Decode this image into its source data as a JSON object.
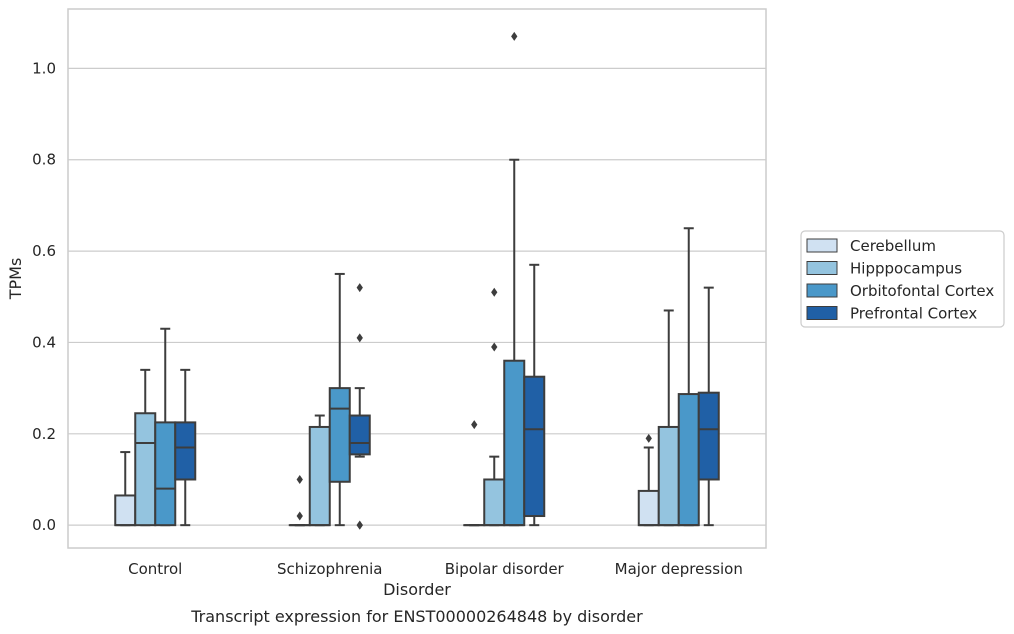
{
  "chart_data": {
    "type": "box",
    "xlabel": "Disorder",
    "ylabel": "TPMs",
    "caption": "Transcript expression for ENST00000264848 by disorder",
    "categories": [
      "Control",
      "Schizophrenia",
      "Bipolar disorder",
      "Major depression"
    ],
    "ylim": [
      -0.05,
      1.13
    ],
    "yticks": [
      0.0,
      0.2,
      0.4,
      0.6,
      0.8,
      1.0
    ],
    "ytick_labels": [
      "0.0",
      "0.2",
      "0.4",
      "0.6",
      "0.8",
      "1.0"
    ],
    "grid": true,
    "legend_position": "right",
    "series": [
      {
        "name": "Cerebellum",
        "color": "#d0e1f2",
        "boxes": [
          {
            "q1": 0.0,
            "median": 0.0,
            "q3": 0.065,
            "whisker_low": 0.0,
            "whisker_high": 0.16,
            "outliers": []
          },
          {
            "q1": 0.0,
            "median": 0.0,
            "q3": 0.0,
            "whisker_low": 0.0,
            "whisker_high": 0.0,
            "outliers": [
              0.1,
              0.02
            ]
          },
          {
            "q1": 0.0,
            "median": 0.0,
            "q3": 0.0,
            "whisker_low": 0.0,
            "whisker_high": 0.0,
            "outliers": [
              0.22
            ]
          },
          {
            "q1": 0.0,
            "median": 0.0,
            "q3": 0.075,
            "whisker_low": 0.0,
            "whisker_high": 0.17,
            "outliers": [
              0.19
            ]
          }
        ]
      },
      {
        "name": "Hipppocampus",
        "color": "#94c4df",
        "boxes": [
          {
            "q1": 0.0,
            "median": 0.18,
            "q3": 0.245,
            "whisker_low": 0.0,
            "whisker_high": 0.34,
            "outliers": []
          },
          {
            "q1": 0.0,
            "median": 0.0,
            "q3": 0.215,
            "whisker_low": 0.0,
            "whisker_high": 0.24,
            "outliers": []
          },
          {
            "q1": 0.0,
            "median": 0.0,
            "q3": 0.1,
            "whisker_low": 0.0,
            "whisker_high": 0.15,
            "outliers": [
              0.39,
              0.51
            ]
          },
          {
            "q1": 0.0,
            "median": 0.0,
            "q3": 0.215,
            "whisker_low": 0.0,
            "whisker_high": 0.47,
            "outliers": []
          }
        ]
      },
      {
        "name": "Orbitofontal Cortex",
        "color": "#4a98c9",
        "boxes": [
          {
            "q1": 0.0,
            "median": 0.08,
            "q3": 0.225,
            "whisker_low": 0.0,
            "whisker_high": 0.43,
            "outliers": []
          },
          {
            "q1": 0.095,
            "median": 0.255,
            "q3": 0.3,
            "whisker_low": 0.0,
            "whisker_high": 0.55,
            "outliers": []
          },
          {
            "q1": 0.0,
            "median": 0.0,
            "q3": 0.36,
            "whisker_low": 0.0,
            "whisker_high": 0.8,
            "outliers": [
              1.07
            ]
          },
          {
            "q1": 0.0,
            "median": 0.0,
            "q3": 0.287,
            "whisker_low": 0.0,
            "whisker_high": 0.65,
            "outliers": []
          }
        ]
      },
      {
        "name": "Prefrontal Cortex",
        "color": "#2060a6",
        "boxes": [
          {
            "q1": 0.1,
            "median": 0.17,
            "q3": 0.225,
            "whisker_low": 0.0,
            "whisker_high": 0.34,
            "outliers": []
          },
          {
            "q1": 0.155,
            "median": 0.18,
            "q3": 0.24,
            "whisker_low": 0.15,
            "whisker_high": 0.3,
            "outliers": [
              0.41,
              0.52,
              0.0,
              0.0
            ]
          },
          {
            "q1": 0.02,
            "median": 0.21,
            "q3": 0.325,
            "whisker_low": 0.0,
            "whisker_high": 0.57,
            "outliers": []
          },
          {
            "q1": 0.1,
            "median": 0.21,
            "q3": 0.29,
            "whisker_low": 0.0,
            "whisker_high": 0.52,
            "outliers": []
          }
        ]
      }
    ]
  }
}
